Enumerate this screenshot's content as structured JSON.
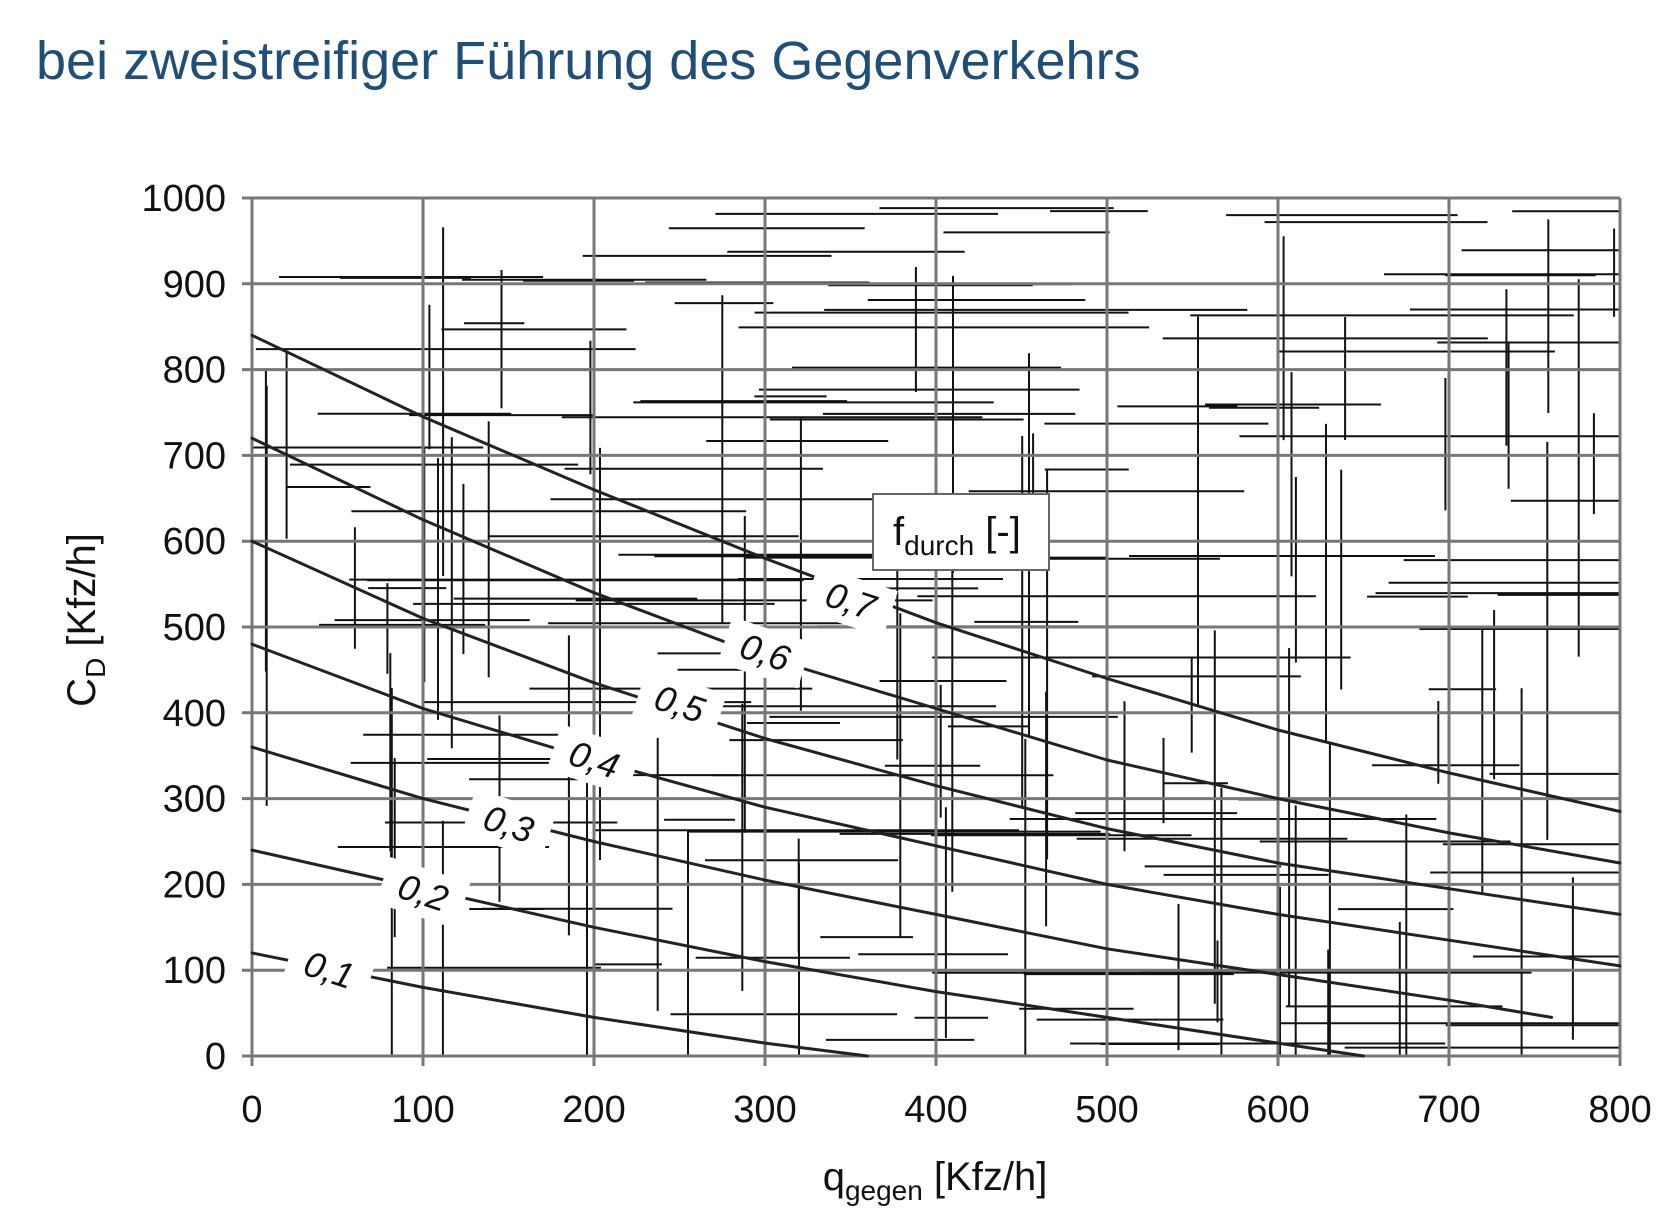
{
  "title": "bei zweistreifiger Führung des Gegenverkehrs",
  "chart_data": {
    "type": "line",
    "xlabel_main": "q",
    "xlabel_sub": "gegen",
    "xlabel_unit": " [Kfz/h]",
    "ylabel_main": "C",
    "ylabel_sub": "D",
    "ylabel_unit": " [Kfz/h]",
    "xlim": [
      0,
      800
    ],
    "ylim": [
      0,
      1000
    ],
    "x_ticks": [
      0,
      100,
      200,
      300,
      400,
      500,
      600,
      700,
      800
    ],
    "y_ticks": [
      0,
      100,
      200,
      300,
      400,
      500,
      600,
      700,
      800,
      900,
      1000
    ],
    "x_tick_labels": [
      "0",
      "100",
      "200",
      "300",
      "400",
      "500",
      "600",
      "700",
      "800"
    ],
    "y_tick_labels": [
      "0",
      "100",
      "200",
      "300",
      "400",
      "500",
      "600",
      "700",
      "800",
      "900",
      "1000"
    ],
    "grid": true,
    "legend_main": "f",
    "legend_sub": "durch",
    "legend_unit": " [-]",
    "legend_position": "center",
    "series": [
      {
        "label": "0,1",
        "label_x": 45,
        "label_y": 100,
        "x": [
          0,
          100,
          200,
          300,
          360
        ],
        "y": [
          120,
          80,
          45,
          15,
          0
        ]
      },
      {
        "label": "0,2",
        "label_x": 100,
        "label_y": 190,
        "x": [
          0,
          100,
          200,
          300,
          400,
          500,
          600,
          650
        ],
        "y": [
          240,
          195,
          150,
          110,
          75,
          45,
          15,
          0
        ]
      },
      {
        "label": "0,3",
        "label_x": 150,
        "label_y": 270,
        "x": [
          0,
          100,
          200,
          300,
          400,
          500,
          600,
          700,
          760
        ],
        "y": [
          360,
          300,
          250,
          205,
          165,
          125,
          95,
          65,
          45
        ]
      },
      {
        "label": "0,4",
        "label_x": 200,
        "label_y": 345,
        "x": [
          0,
          100,
          200,
          300,
          400,
          500,
          600,
          700,
          800
        ],
        "y": [
          480,
          405,
          345,
          290,
          245,
          200,
          165,
          135,
          105
        ]
      },
      {
        "label": "0,5",
        "label_x": 250,
        "label_y": 410,
        "x": [
          0,
          100,
          200,
          300,
          400,
          500,
          600,
          700,
          800
        ],
        "y": [
          600,
          510,
          435,
          370,
          315,
          265,
          225,
          195,
          165
        ]
      },
      {
        "label": "0,6",
        "label_x": 300,
        "label_y": 470,
        "x": [
          0,
          100,
          200,
          300,
          400,
          500,
          600,
          700,
          800
        ],
        "y": [
          720,
          625,
          540,
          465,
          405,
          345,
          300,
          260,
          225
        ]
      },
      {
        "label": "0,7",
        "label_x": 350,
        "label_y": 530,
        "x": [
          0,
          100,
          200,
          300,
          400,
          500,
          600,
          700,
          800
        ],
        "y": [
          840,
          745,
          660,
          580,
          505,
          440,
          380,
          330,
          285
        ]
      }
    ]
  }
}
